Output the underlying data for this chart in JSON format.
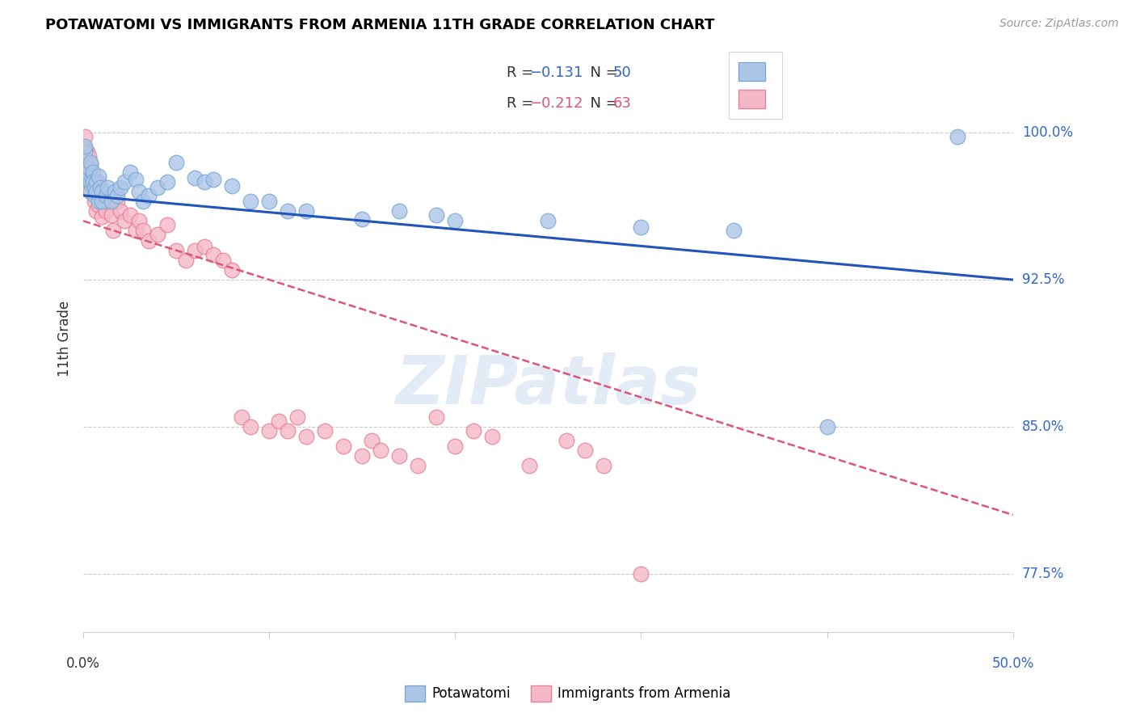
{
  "title": "POTAWATOMI VS IMMIGRANTS FROM ARMENIA 11TH GRADE CORRELATION CHART",
  "source": "Source: ZipAtlas.com",
  "ylabel": "11th Grade",
  "ylabel_ticks": [
    "77.5%",
    "85.0%",
    "92.5%",
    "100.0%"
  ],
  "ylabel_values": [
    0.775,
    0.85,
    0.925,
    1.0
  ],
  "xmin": 0.0,
  "xmax": 0.5,
  "ymin": 0.745,
  "ymax": 1.045,
  "blue_color": "#adc6e8",
  "blue_edge": "#7aaad4",
  "pink_color": "#f5b8c8",
  "pink_edge": "#e8809a",
  "blue_line_color": "#2255bb",
  "pink_line_color": "#dd5577",
  "watermark": "ZIPatlas",
  "blue_scatter": [
    [
      0.001,
      0.99
    ],
    [
      0.001,
      0.993
    ],
    [
      0.003,
      0.978
    ],
    [
      0.003,
      0.982
    ],
    [
      0.004,
      0.985
    ],
    [
      0.004,
      0.975
    ],
    [
      0.004,
      0.97
    ],
    [
      0.005,
      0.98
    ],
    [
      0.005,
      0.975
    ],
    [
      0.006,
      0.972
    ],
    [
      0.006,
      0.968
    ],
    [
      0.007,
      0.975
    ],
    [
      0.007,
      0.97
    ],
    [
      0.008,
      0.978
    ],
    [
      0.008,
      0.965
    ],
    [
      0.009,
      0.972
    ],
    [
      0.01,
      0.97
    ],
    [
      0.01,
      0.965
    ],
    [
      0.012,
      0.968
    ],
    [
      0.013,
      0.972
    ],
    [
      0.015,
      0.965
    ],
    [
      0.017,
      0.97
    ],
    [
      0.018,
      0.968
    ],
    [
      0.02,
      0.972
    ],
    [
      0.022,
      0.975
    ],
    [
      0.025,
      0.98
    ],
    [
      0.028,
      0.976
    ],
    [
      0.03,
      0.97
    ],
    [
      0.032,
      0.965
    ],
    [
      0.035,
      0.968
    ],
    [
      0.04,
      0.972
    ],
    [
      0.045,
      0.975
    ],
    [
      0.05,
      0.985
    ],
    [
      0.06,
      0.977
    ],
    [
      0.065,
      0.975
    ],
    [
      0.07,
      0.976
    ],
    [
      0.08,
      0.973
    ],
    [
      0.09,
      0.965
    ],
    [
      0.1,
      0.965
    ],
    [
      0.11,
      0.96
    ],
    [
      0.12,
      0.96
    ],
    [
      0.15,
      0.956
    ],
    [
      0.17,
      0.96
    ],
    [
      0.19,
      0.958
    ],
    [
      0.2,
      0.955
    ],
    [
      0.25,
      0.955
    ],
    [
      0.3,
      0.952
    ],
    [
      0.35,
      0.95
    ],
    [
      0.4,
      0.85
    ],
    [
      0.47,
      0.998
    ]
  ],
  "pink_scatter": [
    [
      0.001,
      0.998
    ],
    [
      0.001,
      0.992
    ],
    [
      0.001,
      0.985
    ],
    [
      0.002,
      0.99
    ],
    [
      0.002,
      0.983
    ],
    [
      0.003,
      0.988
    ],
    [
      0.003,
      0.98
    ],
    [
      0.003,
      0.975
    ],
    [
      0.004,
      0.984
    ],
    [
      0.004,
      0.978
    ],
    [
      0.004,
      0.97
    ],
    [
      0.005,
      0.978
    ],
    [
      0.005,
      0.972
    ],
    [
      0.006,
      0.975
    ],
    [
      0.006,
      0.965
    ],
    [
      0.007,
      0.972
    ],
    [
      0.007,
      0.96
    ],
    [
      0.008,
      0.975
    ],
    [
      0.008,
      0.963
    ],
    [
      0.009,
      0.968
    ],
    [
      0.01,
      0.965
    ],
    [
      0.01,
      0.957
    ],
    [
      0.012,
      0.96
    ],
    [
      0.013,
      0.965
    ],
    [
      0.015,
      0.958
    ],
    [
      0.016,
      0.95
    ],
    [
      0.018,
      0.965
    ],
    [
      0.02,
      0.96
    ],
    [
      0.022,
      0.955
    ],
    [
      0.025,
      0.958
    ],
    [
      0.028,
      0.95
    ],
    [
      0.03,
      0.955
    ],
    [
      0.032,
      0.95
    ],
    [
      0.035,
      0.945
    ],
    [
      0.04,
      0.948
    ],
    [
      0.045,
      0.953
    ],
    [
      0.05,
      0.94
    ],
    [
      0.055,
      0.935
    ],
    [
      0.06,
      0.94
    ],
    [
      0.065,
      0.942
    ],
    [
      0.07,
      0.938
    ],
    [
      0.075,
      0.935
    ],
    [
      0.08,
      0.93
    ],
    [
      0.085,
      0.855
    ],
    [
      0.09,
      0.85
    ],
    [
      0.1,
      0.848
    ],
    [
      0.105,
      0.853
    ],
    [
      0.11,
      0.848
    ],
    [
      0.115,
      0.855
    ],
    [
      0.12,
      0.845
    ],
    [
      0.13,
      0.848
    ],
    [
      0.14,
      0.84
    ],
    [
      0.15,
      0.835
    ],
    [
      0.155,
      0.843
    ],
    [
      0.16,
      0.838
    ],
    [
      0.17,
      0.835
    ],
    [
      0.18,
      0.83
    ],
    [
      0.19,
      0.855
    ],
    [
      0.2,
      0.84
    ],
    [
      0.21,
      0.848
    ],
    [
      0.22,
      0.845
    ],
    [
      0.24,
      0.83
    ],
    [
      0.26,
      0.843
    ],
    [
      0.27,
      0.838
    ],
    [
      0.28,
      0.83
    ],
    [
      0.3,
      0.775
    ]
  ],
  "blue_line_y0": 0.968,
  "blue_line_y1": 0.925,
  "pink_line_y0": 0.955,
  "pink_line_y1": 0.805
}
